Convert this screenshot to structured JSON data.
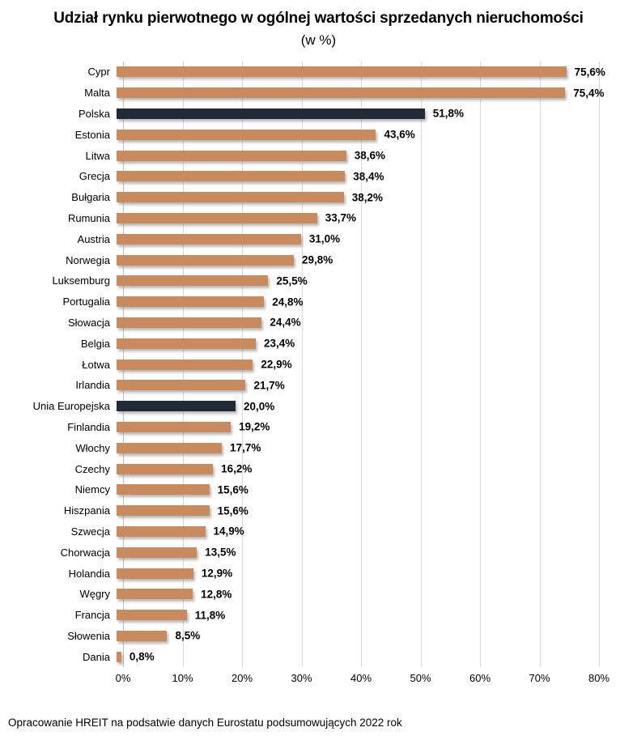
{
  "title": "Udział rynku pierwotnego w ogólnej wartości sprzedanych nieruchomości",
  "subtitle": "(w %)",
  "footer": "Opracowanie HREIT na podsatwie danych Eurostatu podsumowujących 2022 rok",
  "colors": {
    "bar": "#c98b5e",
    "highlight_bar": "#212b38",
    "gridline": "#d9d9d9",
    "axis_line": "#bfbfbf",
    "text": "#000000"
  },
  "chart_data": {
    "type": "bar",
    "orientation": "horizontal",
    "title": "Udział rynku pierwotnego w ogólnej wartości sprzedanych nieruchomości",
    "subtitle": "(w %)",
    "xlabel": "",
    "ylabel": "",
    "xlim": [
      0,
      80
    ],
    "grid": true,
    "x_ticks": [
      "0%",
      "10%",
      "20%",
      "30%",
      "40%",
      "50%",
      "60%",
      "70%",
      "80%"
    ],
    "categories": [
      "Cypr",
      "Malta",
      "Polska",
      "Estonia",
      "Litwa",
      "Grecja",
      "Bułgaria",
      "Rumunia",
      "Austria",
      "Norwegia",
      "Luksemburg",
      "Portugalia",
      "Słowacja",
      "Belgia",
      "Łotwa",
      "Irlandia",
      "Unia Europejska",
      "Finlandia",
      "Włochy",
      "Czechy",
      "Niemcy",
      "Hiszpania",
      "Szwecja",
      "Chorwacja",
      "Holandia",
      "Węgry",
      "Francja",
      "Słowenia",
      "Dania"
    ],
    "values": [
      75.6,
      75.4,
      51.8,
      43.6,
      38.6,
      38.4,
      38.2,
      33.7,
      31.0,
      29.8,
      25.5,
      24.8,
      24.4,
      23.4,
      22.9,
      21.7,
      20.0,
      19.2,
      17.7,
      16.2,
      15.6,
      15.6,
      14.9,
      13.5,
      12.9,
      12.8,
      11.8,
      8.5,
      0.8
    ],
    "value_labels": [
      "75,6%",
      "75,4%",
      "51,8%",
      "43,6%",
      "38,6%",
      "38,4%",
      "38,2%",
      "33,7%",
      "31,0%",
      "29,8%",
      "25,5%",
      "24,8%",
      "24,4%",
      "23,4%",
      "22,9%",
      "21,7%",
      "20,0%",
      "19,2%",
      "17,7%",
      "16,2%",
      "15,6%",
      "15,6%",
      "14,9%",
      "13,5%",
      "12,9%",
      "12,8%",
      "11,8%",
      "8,5%",
      "0,8%"
    ],
    "highlighted_categories": [
      "Polska",
      "Unia Europejska"
    ]
  }
}
